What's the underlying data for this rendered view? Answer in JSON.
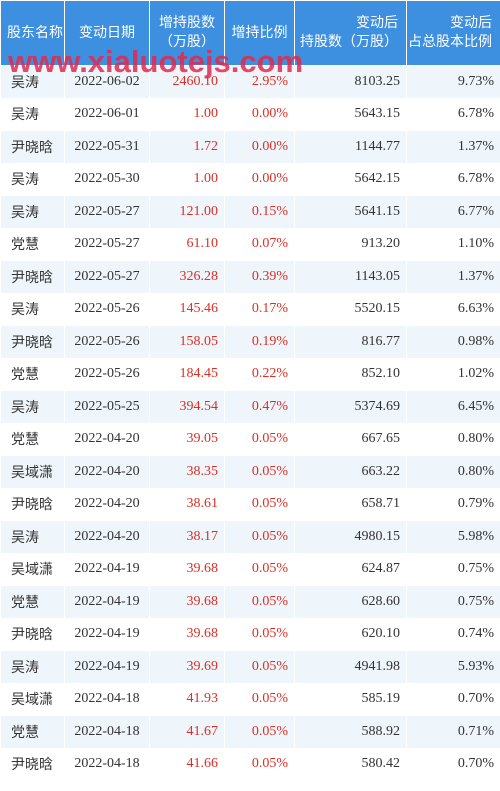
{
  "headers": [
    "股东名称",
    "变动日期",
    "增持股数\n（万股）",
    "增持比例",
    "变动后\n持股数（万股）",
    "变动后\n占总股本比例"
  ],
  "watermark": "www.xialuotejs.com",
  "rows": [
    [
      "吴涛",
      "2022-06-02",
      "2460.10",
      "2.95%",
      "8103.25",
      "9.73%"
    ],
    [
      "吴涛",
      "2022-06-01",
      "1.00",
      "0.00%",
      "5643.15",
      "6.78%"
    ],
    [
      "尹晓晗",
      "2022-05-31",
      "1.72",
      "0.00%",
      "1144.77",
      "1.37%"
    ],
    [
      "吴涛",
      "2022-05-30",
      "1.00",
      "0.00%",
      "5642.15",
      "6.78%"
    ],
    [
      "吴涛",
      "2022-05-27",
      "121.00",
      "0.15%",
      "5641.15",
      "6.77%"
    ],
    [
      "党慧",
      "2022-05-27",
      "61.10",
      "0.07%",
      "913.20",
      "1.10%"
    ],
    [
      "尹晓晗",
      "2022-05-27",
      "326.28",
      "0.39%",
      "1143.05",
      "1.37%"
    ],
    [
      "吴涛",
      "2022-05-26",
      "145.46",
      "0.17%",
      "5520.15",
      "6.63%"
    ],
    [
      "尹晓晗",
      "2022-05-26",
      "158.05",
      "0.19%",
      "816.77",
      "0.98%"
    ],
    [
      "党慧",
      "2022-05-26",
      "184.45",
      "0.22%",
      "852.10",
      "1.02%"
    ],
    [
      "吴涛",
      "2022-05-25",
      "394.54",
      "0.47%",
      "5374.69",
      "6.45%"
    ],
    [
      "党慧",
      "2022-04-20",
      "39.05",
      "0.05%",
      "667.65",
      "0.80%"
    ],
    [
      "吴域潇",
      "2022-04-20",
      "38.35",
      "0.05%",
      "663.22",
      "0.80%"
    ],
    [
      "尹晓晗",
      "2022-04-20",
      "38.61",
      "0.05%",
      "658.71",
      "0.79%"
    ],
    [
      "吴涛",
      "2022-04-20",
      "38.17",
      "0.05%",
      "4980.15",
      "5.98%"
    ],
    [
      "吴域潇",
      "2022-04-19",
      "39.68",
      "0.05%",
      "624.87",
      "0.75%"
    ],
    [
      "党慧",
      "2022-04-19",
      "39.68",
      "0.05%",
      "628.60",
      "0.75%"
    ],
    [
      "尹晓晗",
      "2022-04-19",
      "39.68",
      "0.05%",
      "620.10",
      "0.74%"
    ],
    [
      "吴涛",
      "2022-04-19",
      "39.69",
      "0.05%",
      "4941.98",
      "5.93%"
    ],
    [
      "吴域潇",
      "2022-04-18",
      "41.93",
      "0.05%",
      "585.19",
      "0.70%"
    ],
    [
      "党慧",
      "2022-04-18",
      "41.67",
      "0.05%",
      "588.92",
      "0.71%"
    ],
    [
      "尹晓晗",
      "2022-04-18",
      "41.66",
      "0.05%",
      "580.42",
      "0.70%"
    ]
  ]
}
